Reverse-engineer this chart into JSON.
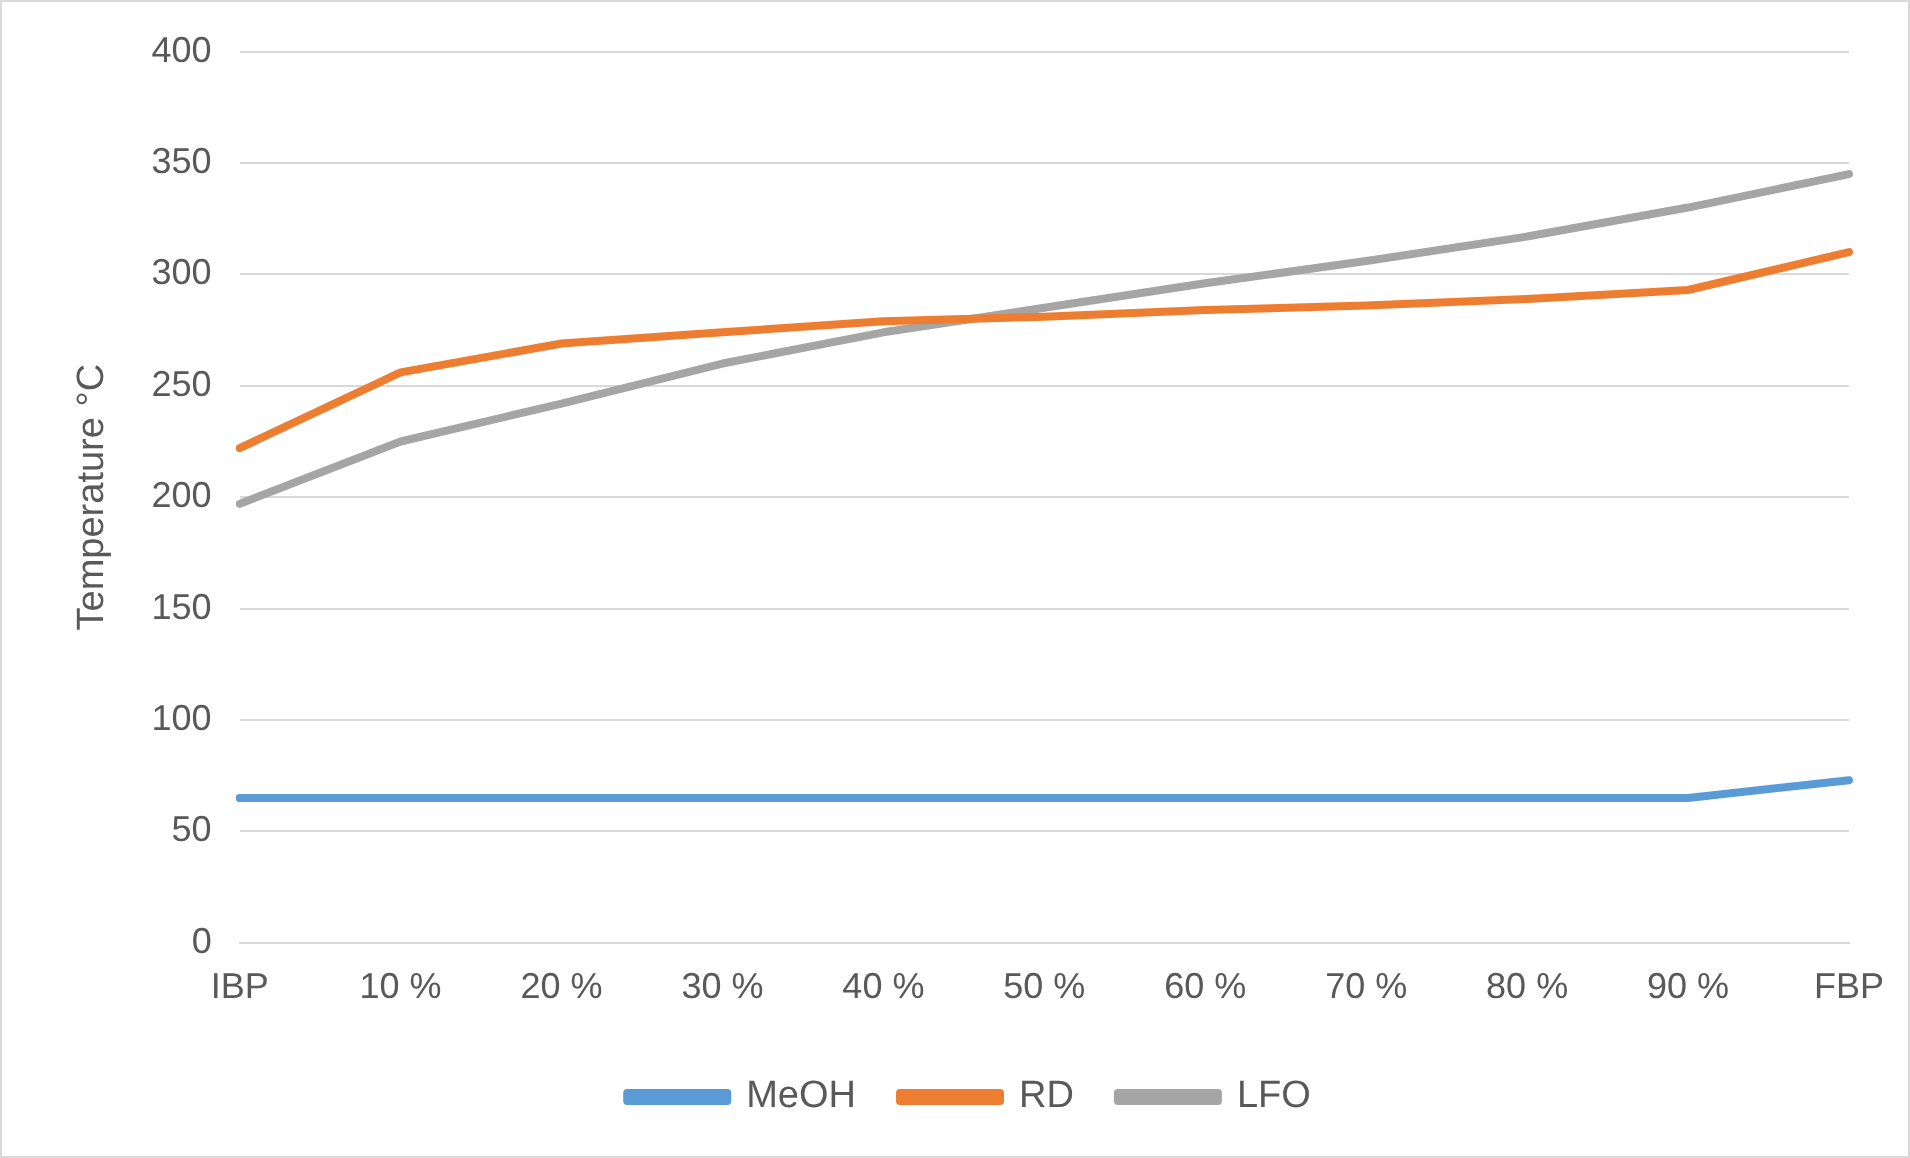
{
  "chart_data": {
    "type": "line",
    "ylabel": "Temperature °C",
    "categories": [
      "IBP",
      "10 %",
      "20 %",
      "30 %",
      "40 %",
      "50 %",
      "60 %",
      "70 %",
      "80 %",
      "90 %",
      "FBP"
    ],
    "series": [
      {
        "name": "MeOH",
        "color": "#5b9bd5",
        "values": [
          65,
          65,
          65,
          65,
          65,
          65,
          65,
          65,
          65,
          65,
          73
        ]
      },
      {
        "name": "RD",
        "color": "#ed7d31",
        "values": [
          222,
          256,
          269,
          274,
          279,
          281,
          284,
          286,
          289,
          293,
          310
        ]
      },
      {
        "name": "LFO",
        "color": "#a5a5a5",
        "values": [
          197,
          225,
          242,
          260,
          274,
          285,
          296,
          306,
          317,
          330,
          345
        ]
      }
    ],
    "ylim": [
      0,
      400
    ],
    "yticks": [
      0,
      50,
      100,
      150,
      200,
      250,
      300,
      350,
      400
    ],
    "grid": "y",
    "legend": "bottom",
    "marker": "none",
    "line_style": "solid"
  }
}
